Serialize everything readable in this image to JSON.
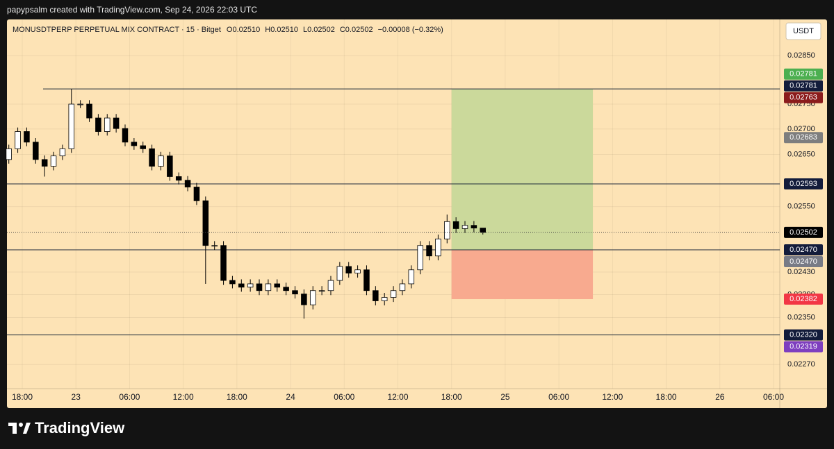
{
  "header": {
    "text": "papypsalm created with TradingView.com, Sep 24, 2026 22:03 UTC"
  },
  "chart_data": {
    "type": "candlestick",
    "symbol": "MONUSDTPERP PERPETUAL MIX CONTRACT · 15 · Bitget",
    "legend_values": [
      "O0.02510",
      "H0.02510",
      "L0.02502",
      "C0.02502",
      "−0.00008 (−0.32%)"
    ],
    "currency": "USDT",
    "x": [
      -1.5,
      -0.5,
      0.5,
      1.5,
      2.5,
      3.5,
      4.5,
      5.5,
      6.5,
      7.5,
      8.5,
      9.5,
      10.5,
      11.5,
      12.5,
      13.5,
      14.5,
      15.5,
      16.5,
      17.5,
      18.5,
      19.5,
      20.5,
      21.5,
      22.5,
      23.5,
      24.5,
      25.5,
      26.5,
      27.5,
      28.5,
      29.5,
      30.5,
      31.5,
      32.5,
      33.5,
      34.5,
      35.5,
      36.5,
      37.5,
      38.5,
      39.5,
      40.5,
      41.5,
      42.5,
      43.5,
      44.5,
      45.5,
      46.5,
      47.5,
      48.5,
      49.5,
      50.5,
      51.5
    ],
    "open": [
      0.0264,
      0.02661,
      0.02695,
      0.02674,
      0.0264,
      0.02627,
      0.02647,
      0.02661,
      0.0275,
      0.0275,
      0.02722,
      0.02695,
      0.02722,
      0.02701,
      0.02674,
      0.02667,
      0.02661,
      0.02627,
      0.02647,
      0.02607,
      0.026,
      0.02587,
      0.02561,
      0.02478,
      0.02478,
      0.02415,
      0.02409,
      0.02403,
      0.02409,
      0.02397,
      0.02409,
      0.02403,
      0.02397,
      0.02391,
      0.02372,
      0.02397,
      0.02397,
      0.02415,
      0.0244,
      0.02428,
      0.02434,
      0.02397,
      0.02379,
      0.02385,
      0.02397,
      0.02409,
      0.02434,
      0.02478,
      0.02459,
      0.0249,
      0.02522,
      0.02509,
      0.02515,
      0.0251
    ],
    "high": [
      0.02669,
      0.02703,
      0.02703,
      0.02682,
      0.02648,
      0.02655,
      0.02669,
      0.02781,
      0.02758,
      0.02758,
      0.0273,
      0.0273,
      0.0273,
      0.02709,
      0.02682,
      0.02675,
      0.02669,
      0.02655,
      0.02655,
      0.02615,
      0.02608,
      0.02595,
      0.02569,
      0.02486,
      0.02486,
      0.02423,
      0.02417,
      0.02417,
      0.02417,
      0.02417,
      0.02417,
      0.02411,
      0.02405,
      0.02399,
      0.02405,
      0.02405,
      0.02423,
      0.02448,
      0.02448,
      0.02442,
      0.02442,
      0.02405,
      0.02393,
      0.02405,
      0.02417,
      0.02442,
      0.02486,
      0.02486,
      0.02498,
      0.02535,
      0.0253,
      0.02523,
      0.02523,
      0.0251
    ],
    "low": [
      0.02632,
      0.02653,
      0.02666,
      0.02632,
      0.02607,
      0.02619,
      0.02639,
      0.02653,
      0.02742,
      0.02714,
      0.02687,
      0.02687,
      0.02693,
      0.02666,
      0.02659,
      0.02653,
      0.02619,
      0.02619,
      0.02599,
      0.02592,
      0.02579,
      0.02553,
      0.02409,
      0.0247,
      0.02407,
      0.02401,
      0.02395,
      0.02395,
      0.02389,
      0.02389,
      0.02395,
      0.02389,
      0.02383,
      0.02348,
      0.02364,
      0.02389,
      0.02389,
      0.02407,
      0.0242,
      0.0242,
      0.02389,
      0.02371,
      0.02371,
      0.02377,
      0.02389,
      0.02401,
      0.02426,
      0.02451,
      0.02451,
      0.02482,
      0.02501,
      0.02501,
      0.02502,
      0.02498
    ],
    "close": [
      0.02661,
      0.02695,
      0.02674,
      0.0264,
      0.02627,
      0.02647,
      0.02661,
      0.0275,
      0.0275,
      0.02722,
      0.02695,
      0.02722,
      0.02701,
      0.02674,
      0.02667,
      0.02661,
      0.02627,
      0.02647,
      0.02607,
      0.026,
      0.02587,
      0.02561,
      0.02478,
      0.02478,
      0.02415,
      0.02409,
      0.02403,
      0.02409,
      0.02397,
      0.02409,
      0.02403,
      0.02397,
      0.02391,
      0.02372,
      0.02397,
      0.02397,
      0.02415,
      0.0244,
      0.02428,
      0.02434,
      0.02397,
      0.02379,
      0.02385,
      0.02397,
      0.02409,
      0.02434,
      0.02478,
      0.02459,
      0.0249,
      0.02522,
      0.02509,
      0.02515,
      0.0251,
      0.02502
    ],
    "xlim": [
      -1.71,
      84.7
    ],
    "xticks": [
      {
        "value": 0,
        "label": "18:00"
      },
      {
        "value": 6,
        "label": "23"
      },
      {
        "value": 12,
        "label": "06:00"
      },
      {
        "value": 18,
        "label": "12:00"
      },
      {
        "value": 24,
        "label": "18:00"
      },
      {
        "value": 30,
        "label": "24"
      },
      {
        "value": 36,
        "label": "06:00"
      },
      {
        "value": 42,
        "label": "12:00"
      },
      {
        "value": 48,
        "label": "18:00"
      },
      {
        "value": 54,
        "label": "25"
      },
      {
        "value": 60,
        "label": "06:00"
      },
      {
        "value": 66,
        "label": "12:00"
      },
      {
        "value": 72,
        "label": "18:00"
      },
      {
        "value": 78,
        "label": "26"
      },
      {
        "value": 84,
        "label": "06:00"
      }
    ],
    "ylim": [
      0.0223,
      0.02927
    ],
    "log_scale": true,
    "yticks": [
      {
        "value": 0.0285,
        "label": "0.02850"
      },
      {
        "value": 0.0275,
        "label": "0.02750"
      },
      {
        "value": 0.027,
        "label": "0.02700"
      },
      {
        "value": 0.0265,
        "label": "0.02650"
      },
      {
        "value": 0.0255,
        "label": "0.02550"
      },
      {
        "value": 0.0243,
        "label": "0.02430"
      },
      {
        "value": 0.0239,
        "label": "0.02390"
      },
      {
        "value": 0.0235,
        "label": "0.02350"
      },
      {
        "value": 0.0227,
        "label": "0.02270"
      }
    ],
    "grid": true,
    "background": "#fde3b5",
    "up_color": "#ffffff",
    "down_color": "#000000",
    "lines": [
      {
        "value": 0.02781,
        "x_start": 2.33
      },
      {
        "value": 0.02593
      },
      {
        "value": 0.0247
      },
      {
        "value": 0.0232
      }
    ],
    "position": {
      "x": [
        48,
        63.8
      ],
      "target": 0.02781,
      "entry": 0.0247,
      "stop": 0.02382,
      "profit_color": "#cbd99b",
      "loss_color": "#f8aa8f"
    },
    "price_labels": [
      {
        "value": 0.02781,
        "label": "0.02781",
        "color": "#4caf50"
      },
      {
        "value": 0.02781,
        "label": "0.02781",
        "color": "#131c3b"
      },
      {
        "value": 0.02763,
        "label": "0.02763",
        "color": "#8b1c1c"
      },
      {
        "value": 0.02683,
        "label": "0.02683",
        "color": "#7e7e7e"
      },
      {
        "value": 0.02593,
        "label": "0.02593",
        "color": "#131c3b"
      },
      {
        "value": 0.02502,
        "label": "0.02502",
        "color": "#000000"
      },
      {
        "value": 0.0247,
        "label": "0.02470",
        "color": "#131c3b"
      },
      {
        "value": 0.0247,
        "label": "0.02470",
        "color": "#787b86"
      },
      {
        "value": 0.02382,
        "label": "0.02382",
        "color": "#f23645"
      },
      {
        "value": 0.0232,
        "label": "0.02320",
        "color": "#131c3b"
      },
      {
        "value": 0.02319,
        "label": "0.02319",
        "color": "#7e3fbf"
      }
    ]
  },
  "footer": {
    "brand": "TradingView"
  }
}
